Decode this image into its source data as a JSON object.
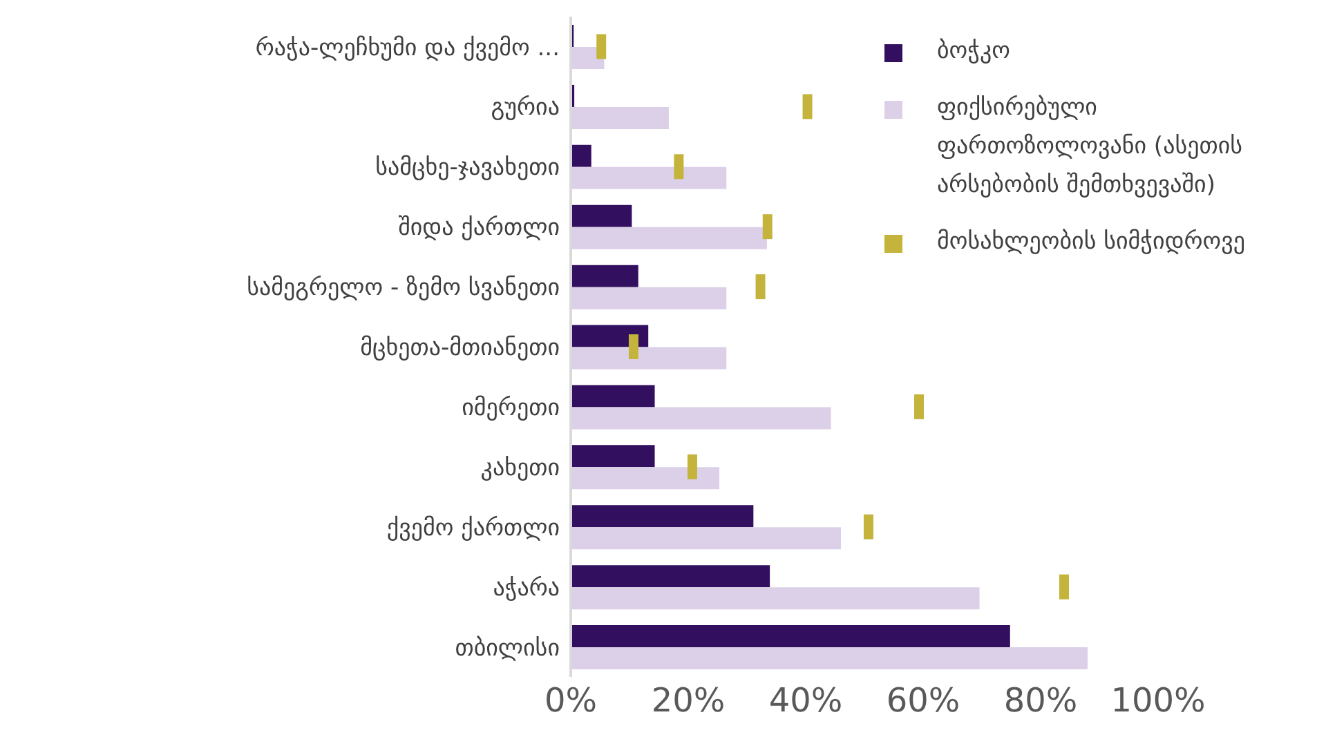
{
  "chart_data": {
    "type": "bar",
    "orientation": "horizontal",
    "categories": [
      "რაჭა-ლეჩხუმი და ქვემო ...",
      "გურია",
      "სამცხე-ჯავახეთი",
      "შიდა ქართლი",
      "სამეგრელო - ზემო სვანეთი",
      "მცხეთა-მთიანეთი",
      "იმერეთი",
      "კახეთი",
      "ქვემო ქართლი",
      "აჭარა",
      "თბილისი"
    ],
    "series": [
      {
        "name": "ბოჭკო",
        "color": "#33105f",
        "values": [
          0.5,
          0.6,
          3.5,
          10.4,
          11.5,
          13.2,
          14.3,
          14.3,
          31.1,
          33.9,
          74.8
        ]
      },
      {
        "name": "ფიქსირებული ფართოზოლოვანი (ასეთის არსებობის შემთხვევაში)",
        "color": "#dcd0e8",
        "values": [
          5.7,
          16.7,
          26.5,
          33.4,
          26.5,
          26.5,
          44.3,
          25.3,
          46,
          69.6,
          88
        ]
      },
      {
        "name": "მოსახლეობის სიმჭიდროვე",
        "type": "scatter",
        "color": "#c4b43c",
        "values": [
          5.2,
          40.3,
          18.4,
          33.5,
          32.3,
          10.7,
          59.3,
          20.7,
          50.7,
          84,
          null
        ]
      }
    ],
    "xlim": [
      0,
      100
    ],
    "xticks": [
      {
        "value": 0,
        "label": "0%"
      },
      {
        "value": 20,
        "label": "20%"
      },
      {
        "value": 40,
        "label": "40%"
      },
      {
        "value": 60,
        "label": "60%"
      },
      {
        "value": 80,
        "label": "80%"
      },
      {
        "value": 100,
        "label": "100%"
      }
    ],
    "grid": false,
    "legend": "top right"
  }
}
